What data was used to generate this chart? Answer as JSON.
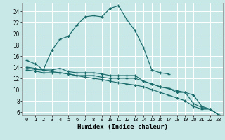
{
  "xlabel": "Humidex (Indice chaleur)",
  "background_color": "#c8e8e8",
  "grid_color": "#afd4d4",
  "line_color": "#1a6b6b",
  "xlim": [
    -0.5,
    23.5
  ],
  "ylim": [
    5.5,
    25.5
  ],
  "yticks": [
    6,
    8,
    10,
    12,
    14,
    16,
    18,
    20,
    22,
    24
  ],
  "xticks": [
    0,
    1,
    2,
    3,
    4,
    5,
    6,
    7,
    8,
    9,
    10,
    11,
    12,
    13,
    14,
    15,
    16,
    17,
    18,
    19,
    20,
    21,
    22,
    23
  ],
  "series": [
    {
      "x": [
        0,
        1,
        2,
        3,
        4,
        5,
        6,
        7,
        8,
        9,
        10,
        11,
        12,
        13,
        14,
        15,
        16,
        17
      ],
      "y": [
        15.2,
        14.6,
        13.5,
        17.0,
        19.0,
        19.5,
        21.5,
        23.0,
        23.2,
        23.0,
        24.5,
        25.0,
        22.5,
        20.5,
        17.5,
        13.5,
        13.0,
        12.8
      ]
    },
    {
      "x": [
        0,
        1,
        2,
        3,
        4,
        5,
        6,
        7,
        8,
        9,
        10,
        11,
        12,
        13,
        14,
        15,
        16,
        17,
        18,
        19,
        20,
        21,
        22,
        23
      ],
      "y": [
        13.8,
        13.6,
        13.5,
        13.5,
        13.8,
        13.2,
        13.0,
        13.0,
        13.0,
        12.8,
        12.5,
        12.5,
        12.5,
        12.5,
        11.5,
        11.0,
        10.5,
        10.2,
        9.5,
        9.5,
        9.0,
        7.0,
        6.5,
        5.5
      ]
    },
    {
      "x": [
        0,
        1,
        2,
        3,
        4,
        5,
        6,
        7,
        8,
        9,
        10,
        11,
        12,
        13,
        14,
        15,
        16,
        17,
        18,
        19,
        20,
        21,
        22,
        23
      ],
      "y": [
        13.5,
        13.3,
        13.0,
        13.0,
        13.0,
        12.8,
        12.5,
        12.5,
        12.5,
        12.2,
        12.0,
        12.0,
        12.0,
        12.0,
        11.5,
        11.0,
        10.5,
        10.2,
        9.8,
        9.5,
        7.5,
        6.8,
        6.5,
        5.5
      ]
    },
    {
      "x": [
        0,
        1,
        2,
        3,
        4,
        5,
        6,
        7,
        8,
        9,
        10,
        11,
        12,
        13,
        14,
        15,
        16,
        17,
        18,
        19,
        20,
        21,
        22,
        23
      ],
      "y": [
        14.0,
        13.8,
        13.5,
        13.2,
        13.0,
        12.8,
        12.5,
        12.2,
        12.0,
        11.8,
        11.5,
        11.2,
        11.0,
        10.8,
        10.5,
        10.0,
        9.5,
        9.0,
        8.5,
        8.0,
        7.0,
        6.5,
        6.5,
        5.5
      ]
    }
  ]
}
